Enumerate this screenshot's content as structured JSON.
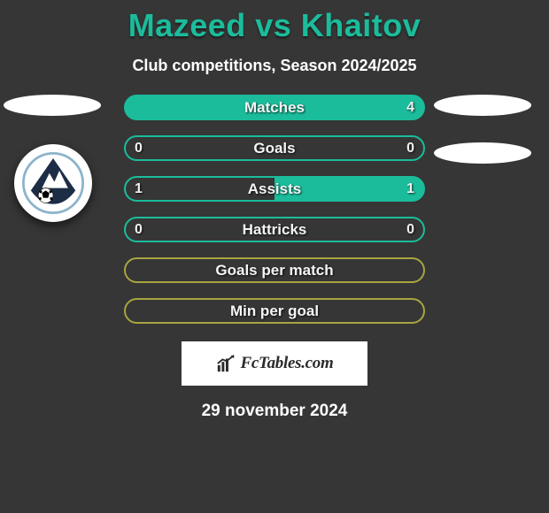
{
  "title": "Mazeed vs Khaitov",
  "subtitle": "Club competitions, Season 2024/2025",
  "palette": {
    "bg": "#363636",
    "accent": "#1bbc9b",
    "olive": "#a7a53f",
    "white": "#ffffff"
  },
  "badge": {
    "ring": "#8db4cb",
    "triangle": "#1c2d45",
    "mountain": "#ffffff",
    "ball": "#000000"
  },
  "rows": [
    {
      "label": "Matches",
      "left": "",
      "right": "4",
      "border_color": "#1bbc9b",
      "fill_from": "right",
      "fill_pct": 100
    },
    {
      "label": "Goals",
      "left": "0",
      "right": "0",
      "border_color": "#1bbc9b",
      "fill_from": "right",
      "fill_pct": 0
    },
    {
      "label": "Assists",
      "left": "1",
      "right": "1",
      "border_color": "#1bbc9b",
      "fill_from": "right",
      "fill_pct": 50
    },
    {
      "label": "Hattricks",
      "left": "0",
      "right": "0",
      "border_color": "#1bbc9b",
      "fill_from": "right",
      "fill_pct": 0
    },
    {
      "label": "Goals per match",
      "left": "",
      "right": "",
      "border_color": "#a7a53f",
      "fill_from": "right",
      "fill_pct": 0
    },
    {
      "label": "Min per goal",
      "left": "",
      "right": "",
      "border_color": "#a7a53f",
      "fill_from": "right",
      "fill_pct": 0
    }
  ],
  "footer_brand": "FcTables.com",
  "date": "29 november 2024"
}
